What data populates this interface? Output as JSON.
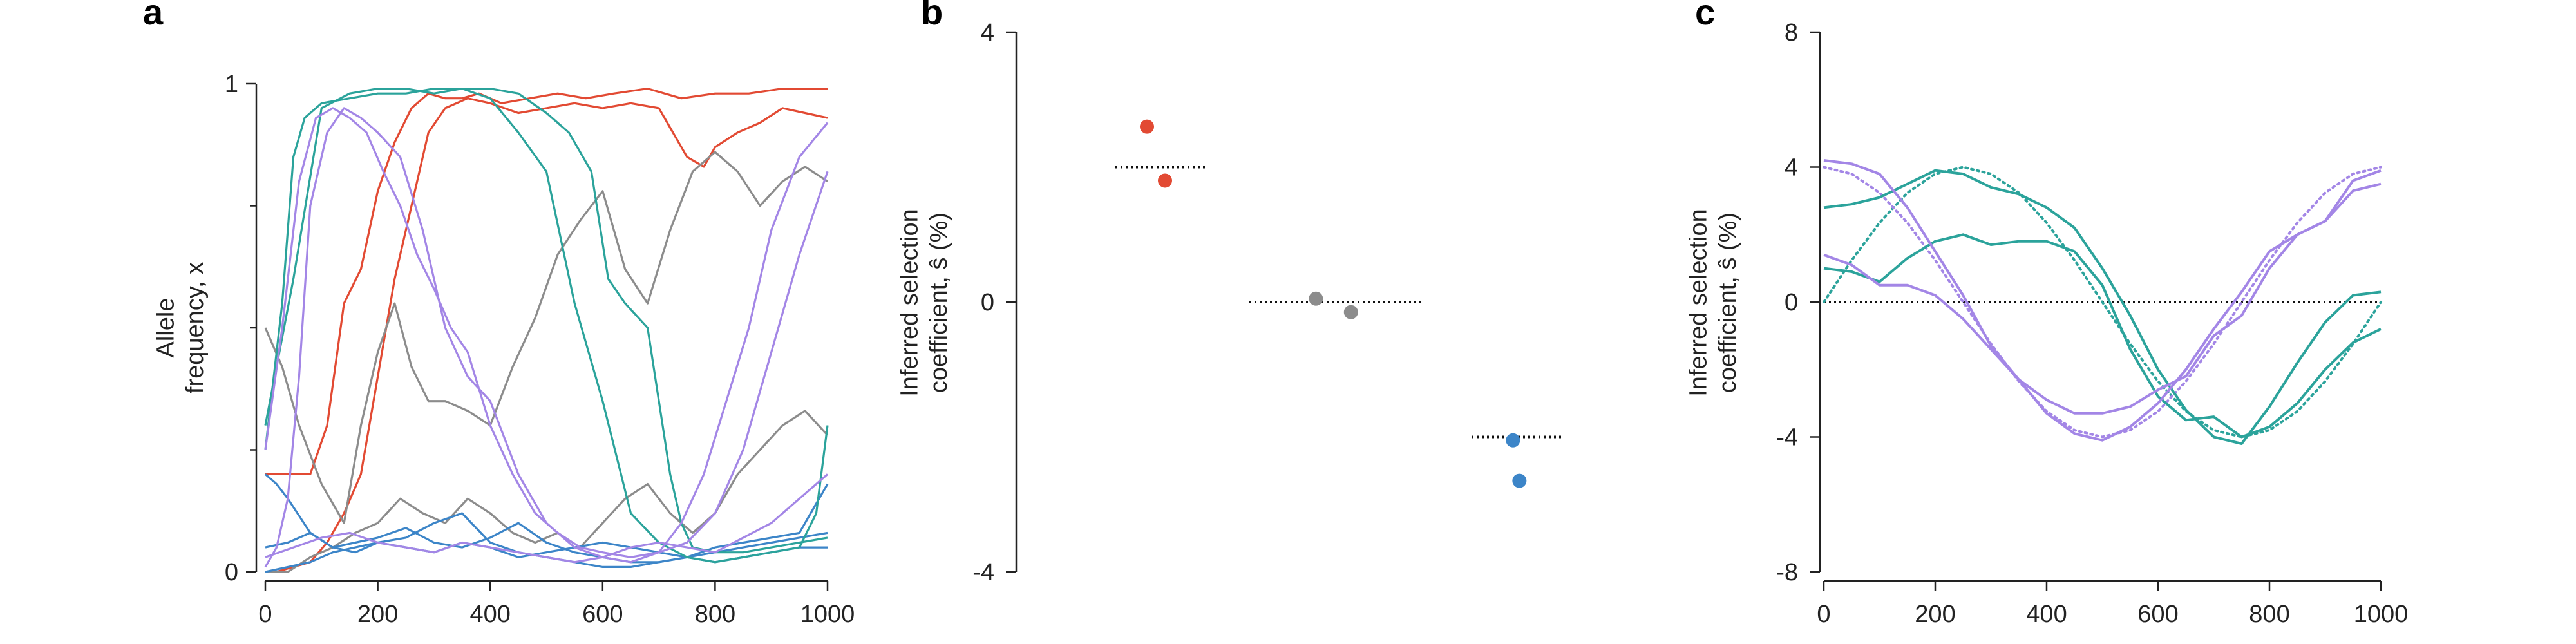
{
  "colors": {
    "red": "#E24A33",
    "gray": "#8C8C8C",
    "blue": "#3C85C8",
    "teal": "#2BA39B",
    "purple": "#A386E6"
  },
  "chart_data": [
    {
      "panel": "a",
      "type": "line",
      "xlabel": "",
      "ylabel_lines": [
        "Allele",
        "frequency, x"
      ],
      "xlim": [
        0,
        1000
      ],
      "ylim": [
        0,
        1
      ],
      "xticks": [
        0,
        200,
        400,
        600,
        800,
        1000
      ],
      "yticks": [
        0,
        1
      ],
      "ytick_minor": [
        0.25,
        0.5,
        0.75
      ],
      "series": [
        {
          "color": "red",
          "x": [
            0,
            50,
            80,
            110,
            140,
            170,
            200,
            230,
            260,
            290,
            320,
            350,
            380,
            420,
            470,
            520,
            570,
            620,
            680,
            740,
            800,
            860,
            920,
            970,
            1000
          ],
          "y": [
            0.2,
            0.2,
            0.2,
            0.3,
            0.55,
            0.62,
            0.78,
            0.88,
            0.95,
            0.98,
            0.97,
            0.97,
            0.98,
            0.96,
            0.97,
            0.98,
            0.97,
            0.98,
            0.99,
            0.97,
            0.98,
            0.98,
            0.99,
            0.99,
            0.99
          ]
        },
        {
          "color": "red",
          "x": [
            0,
            20,
            50,
            80,
            110,
            140,
            170,
            200,
            230,
            260,
            290,
            320,
            360,
            400,
            450,
            500,
            550,
            600,
            650,
            700,
            750,
            780,
            800,
            840,
            880,
            920,
            960,
            1000
          ],
          "y": [
            0,
            0,
            0.01,
            0.02,
            0.06,
            0.12,
            0.2,
            0.4,
            0.6,
            0.75,
            0.9,
            0.95,
            0.97,
            0.96,
            0.94,
            0.95,
            0.96,
            0.95,
            0.96,
            0.95,
            0.85,
            0.83,
            0.87,
            0.9,
            0.92,
            0.95,
            0.94,
            0.93
          ]
        },
        {
          "color": "gray",
          "x": [
            0,
            30,
            60,
            100,
            140,
            170,
            200,
            230,
            260,
            290,
            320,
            360,
            400,
            440,
            480,
            520,
            560,
            600,
            640,
            680,
            720,
            760,
            800,
            840,
            880,
            920,
            960,
            1000
          ],
          "y": [
            0.5,
            0.42,
            0.3,
            0.18,
            0.1,
            0.3,
            0.45,
            0.55,
            0.42,
            0.35,
            0.35,
            0.33,
            0.3,
            0.42,
            0.52,
            0.65,
            0.72,
            0.78,
            0.62,
            0.55,
            0.7,
            0.82,
            0.86,
            0.82,
            0.75,
            0.8,
            0.83,
            0.8
          ]
        },
        {
          "color": "gray",
          "x": [
            0,
            40,
            80,
            120,
            160,
            200,
            240,
            280,
            320,
            360,
            400,
            440,
            480,
            520,
            560,
            600,
            640,
            680,
            720,
            760,
            800,
            840,
            880,
            920,
            960,
            1000
          ],
          "y": [
            0,
            0,
            0.03,
            0.05,
            0.08,
            0.1,
            0.15,
            0.12,
            0.1,
            0.15,
            0.12,
            0.08,
            0.06,
            0.08,
            0.05,
            0.1,
            0.15,
            0.18,
            0.12,
            0.08,
            0.12,
            0.2,
            0.25,
            0.3,
            0.33,
            0.28
          ]
        },
        {
          "color": "blue",
          "x": [
            0,
            20,
            40,
            80,
            120,
            160,
            200,
            250,
            300,
            350,
            400,
            450,
            500,
            550,
            600,
            650,
            700,
            750,
            800,
            850,
            900,
            950,
            1000
          ],
          "y": [
            0.2,
            0.18,
            0.15,
            0.08,
            0.05,
            0.04,
            0.06,
            0.05,
            0.04,
            0.06,
            0.05,
            0.03,
            0.04,
            0.05,
            0.06,
            0.05,
            0.04,
            0.03,
            0.05,
            0.06,
            0.07,
            0.08,
            0.18
          ]
        },
        {
          "color": "blue",
          "x": [
            0,
            40,
            80,
            120,
            160,
            200,
            250,
            300,
            350,
            400,
            450,
            500,
            550,
            600,
            650,
            700,
            750,
            800,
            850,
            900,
            950,
            1000
          ],
          "y": [
            0,
            0.01,
            0.02,
            0.04,
            0.05,
            0.06,
            0.07,
            0.1,
            0.12,
            0.06,
            0.04,
            0.03,
            0.02,
            0.01,
            0.01,
            0.02,
            0.03,
            0.04,
            0.05,
            0.06,
            0.07,
            0.08
          ]
        },
        {
          "color": "blue",
          "x": [
            0,
            40,
            80,
            120,
            160,
            200,
            250,
            300,
            350,
            400,
            450,
            500,
            550,
            600,
            650,
            700,
            750,
            800,
            850,
            900,
            950,
            1000
          ],
          "y": [
            0.05,
            0.06,
            0.08,
            0.05,
            0.06,
            0.07,
            0.09,
            0.06,
            0.05,
            0.07,
            0.1,
            0.06,
            0.04,
            0.03,
            0.02,
            0.02,
            0.03,
            0.02,
            0.03,
            0.04,
            0.05,
            0.05
          ]
        },
        {
          "color": "teal",
          "x": [
            0,
            30,
            50,
            70,
            100,
            150,
            200,
            250,
            300,
            350,
            400,
            450,
            500,
            540,
            580,
            610,
            640,
            680,
            720,
            740,
            760,
            800,
            850,
            900,
            950,
            1000
          ],
          "y": [
            0.25,
            0.55,
            0.85,
            0.93,
            0.96,
            0.97,
            0.98,
            0.98,
            0.99,
            0.99,
            0.99,
            0.98,
            0.94,
            0.9,
            0.82,
            0.6,
            0.55,
            0.5,
            0.2,
            0.1,
            0.05,
            0.04,
            0.04,
            0.05,
            0.06,
            0.07
          ]
        },
        {
          "color": "teal",
          "x": [
            0,
            50,
            100,
            150,
            200,
            250,
            300,
            350,
            400,
            450,
            500,
            550,
            600,
            650,
            700,
            750,
            800,
            850,
            900,
            950,
            980,
            1000
          ],
          "y": [
            0.3,
            0.6,
            0.95,
            0.98,
            0.99,
            0.99,
            0.98,
            0.99,
            0.97,
            0.9,
            0.82,
            0.55,
            0.35,
            0.12,
            0.06,
            0.03,
            0.02,
            0.03,
            0.04,
            0.05,
            0.12,
            0.3
          ]
        },
        {
          "color": "purple",
          "x": [
            0,
            20,
            40,
            60,
            80,
            110,
            140,
            170,
            200,
            240,
            280,
            320,
            360,
            400,
            450,
            500,
            550,
            600,
            650,
            700,
            740,
            780,
            820,
            860,
            900,
            950,
            1000
          ],
          "y": [
            0.01,
            0.05,
            0.15,
            0.4,
            0.75,
            0.9,
            0.95,
            0.93,
            0.9,
            0.85,
            0.7,
            0.5,
            0.4,
            0.35,
            0.2,
            0.1,
            0.05,
            0.03,
            0.02,
            0.04,
            0.1,
            0.2,
            0.35,
            0.5,
            0.7,
            0.85,
            0.92
          ]
        },
        {
          "color": "purple",
          "x": [
            0,
            30,
            60,
            90,
            120,
            150,
            180,
            210,
            240,
            270,
            300,
            330,
            360,
            400,
            440,
            480,
            520,
            560,
            600,
            650,
            700,
            750,
            800,
            850,
            900,
            950,
            1000
          ],
          "y": [
            0.25,
            0.5,
            0.8,
            0.93,
            0.95,
            0.93,
            0.9,
            0.82,
            0.75,
            0.65,
            0.58,
            0.5,
            0.45,
            0.3,
            0.2,
            0.12,
            0.08,
            0.05,
            0.04,
            0.03,
            0.04,
            0.06,
            0.12,
            0.25,
            0.45,
            0.65,
            0.82
          ]
        },
        {
          "color": "purple",
          "x": [
            0,
            50,
            100,
            150,
            200,
            250,
            300,
            350,
            400,
            450,
            500,
            550,
            600,
            650,
            700,
            750,
            800,
            850,
            900,
            950,
            1000
          ],
          "y": [
            0.03,
            0.05,
            0.07,
            0.08,
            0.06,
            0.05,
            0.04,
            0.06,
            0.05,
            0.04,
            0.03,
            0.02,
            0.03,
            0.05,
            0.06,
            0.05,
            0.04,
            0.07,
            0.1,
            0.15,
            0.2
          ]
        }
      ]
    },
    {
      "panel": "b",
      "type": "scatter",
      "ylabel_lines": [
        "Inferred selection",
        "coefficient, ŝ (%)"
      ],
      "ylim": [
        -4,
        4
      ],
      "yticks": [
        -4,
        0,
        4
      ],
      "true_values": [
        {
          "value": 2,
          "color": "red"
        },
        {
          "value": 0,
          "color": "gray"
        },
        {
          "value": -2,
          "color": "blue"
        }
      ],
      "points": [
        {
          "group": 0,
          "offset": 0.35,
          "value": 2.6,
          "color": "red"
        },
        {
          "group": 0,
          "offset": 0.55,
          "value": 1.8,
          "color": "red"
        },
        {
          "group": 1,
          "offset": 0.38,
          "value": 0.05,
          "color": "gray"
        },
        {
          "group": 1,
          "offset": 0.58,
          "value": -0.15,
          "color": "gray"
        },
        {
          "group": 2,
          "offset": 0.45,
          "value": -2.05,
          "color": "blue"
        },
        {
          "group": 2,
          "offset": 0.52,
          "value": -2.65,
          "color": "blue"
        }
      ]
    },
    {
      "panel": "c",
      "type": "line",
      "ylabel_lines": [
        "Inferred selection",
        "coefficient, ŝ (%)"
      ],
      "xlim": [
        0,
        1000
      ],
      "ylim": [
        -8,
        8
      ],
      "xticks": [
        0,
        200,
        400,
        600,
        800,
        1000
      ],
      "yticks": [
        -8,
        -4,
        0,
        4,
        8
      ],
      "reference_y": 0,
      "true_series": [
        {
          "color": "teal",
          "x": [
            0,
            50,
            100,
            150,
            200,
            250,
            300,
            350,
            400,
            450,
            500,
            550,
            600,
            650,
            700,
            750,
            800,
            850,
            900,
            950,
            1000
          ],
          "y": [
            0,
            1.24,
            2.35,
            3.24,
            3.8,
            4,
            3.8,
            3.24,
            2.35,
            1.24,
            0,
            -1.24,
            -2.35,
            -3.24,
            -3.8,
            -4,
            -3.8,
            -3.24,
            -2.35,
            -1.24,
            0
          ]
        },
        {
          "color": "purple",
          "x": [
            0,
            50,
            100,
            150,
            200,
            250,
            300,
            350,
            400,
            450,
            500,
            550,
            600,
            650,
            700,
            750,
            800,
            850,
            900,
            950,
            1000
          ],
          "y": [
            4,
            3.8,
            3.24,
            2.35,
            1.24,
            0,
            -1.24,
            -2.35,
            -3.24,
            -3.8,
            -4,
            -3.8,
            -3.24,
            -2.35,
            -1.24,
            0,
            1.24,
            2.35,
            3.24,
            3.8,
            4
          ]
        }
      ],
      "inferred_series": [
        {
          "color": "teal",
          "x": [
            0,
            50,
            100,
            150,
            200,
            250,
            300,
            350,
            400,
            450,
            500,
            550,
            600,
            650,
            700,
            750,
            800,
            850,
            900,
            950,
            1000
          ],
          "y": [
            2.8,
            2.9,
            3.1,
            3.5,
            3.9,
            3.8,
            3.4,
            3.2,
            2.8,
            2.2,
            1,
            -0.4,
            -2,
            -3.2,
            -4,
            -4.2,
            -3.1,
            -1.8,
            -0.6,
            0.2,
            0.3
          ]
        },
        {
          "color": "teal",
          "x": [
            0,
            50,
            100,
            150,
            200,
            250,
            300,
            350,
            400,
            450,
            500,
            550,
            600,
            650,
            700,
            750,
            800,
            850,
            900,
            950,
            1000
          ],
          "y": [
            1,
            0.9,
            0.6,
            1.3,
            1.8,
            2,
            1.7,
            1.8,
            1.8,
            1.5,
            0.5,
            -1.4,
            -2.8,
            -3.5,
            -3.4,
            -4,
            -3.7,
            -3,
            -2,
            -1.2,
            -0.8
          ]
        },
        {
          "color": "purple",
          "x": [
            0,
            50,
            100,
            150,
            200,
            250,
            300,
            350,
            400,
            450,
            500,
            550,
            600,
            650,
            700,
            750,
            800,
            850,
            900,
            950,
            1000
          ],
          "y": [
            4.2,
            4.1,
            3.8,
            2.8,
            1.5,
            0.2,
            -1.3,
            -2.3,
            -2.9,
            -3.3,
            -3.3,
            -3.1,
            -2.6,
            -2.2,
            -1,
            -0.4,
            1,
            2,
            2.4,
            3.3,
            3.5
          ]
        },
        {
          "color": "purple",
          "x": [
            0,
            50,
            100,
            150,
            200,
            250,
            300,
            350,
            400,
            450,
            500,
            550,
            600,
            650,
            700,
            750,
            800,
            850,
            900,
            950,
            1000
          ],
          "y": [
            1.4,
            1.1,
            0.5,
            0.5,
            0.2,
            -0.5,
            -1.4,
            -2.3,
            -3.3,
            -3.9,
            -4.1,
            -3.7,
            -3,
            -2,
            -0.8,
            0.3,
            1.5,
            2,
            2.4,
            3.6,
            3.9
          ]
        }
      ]
    }
  ]
}
